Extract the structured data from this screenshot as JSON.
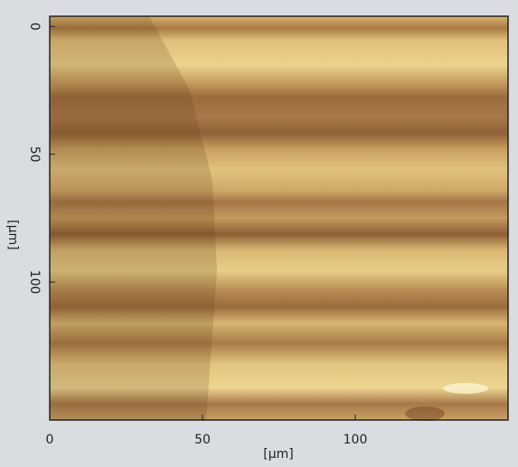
{
  "chart_data": {
    "type": "image",
    "x_label": "[µm]",
    "y_label": "[µm]",
    "xlim": [
      0,
      150
    ],
    "xticks": [
      0,
      50,
      100
    ],
    "ylim": [
      -4,
      154
    ],
    "yticks": [
      0,
      50,
      100
    ],
    "y_inverted": true
  }
}
